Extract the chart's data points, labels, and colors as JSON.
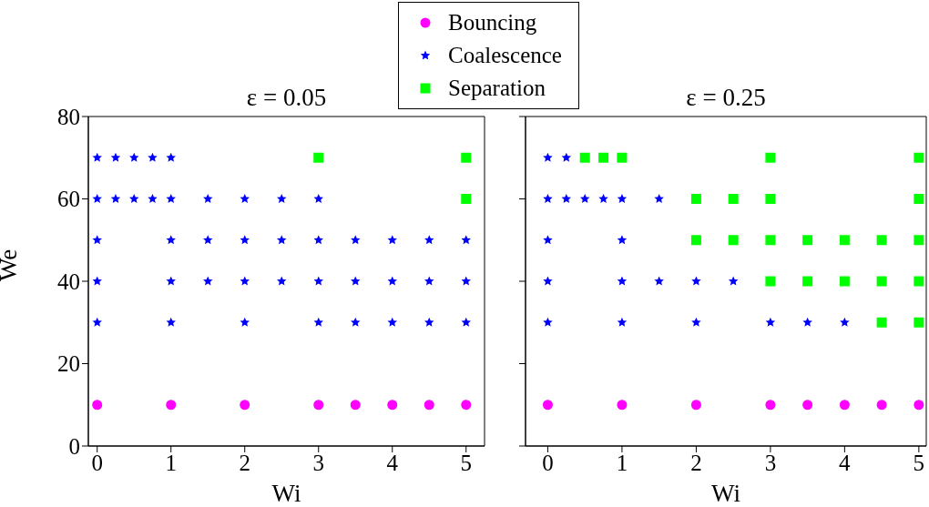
{
  "chart_data": [
    {
      "type": "scatter",
      "title": "ε = 0.05",
      "xlabel": "Wi",
      "ylabel": "We",
      "xlim": [
        -0.12,
        5.25
      ],
      "ylim": [
        0,
        80
      ],
      "xticks": [
        0,
        1,
        2,
        3,
        4,
        5
      ],
      "yticks": [
        0,
        20,
        40,
        60,
        80
      ],
      "grid": false,
      "legend": "top",
      "series": [
        {
          "name": "Bouncing",
          "color": "#ff00ff",
          "marker": "circle",
          "x": [
            0,
            1,
            2,
            3,
            3.5,
            4,
            4.5,
            5
          ],
          "values": [
            10,
            10,
            10,
            10,
            10,
            10,
            10,
            10
          ]
        },
        {
          "name": "Coalescence",
          "color": "#0000ff",
          "marker": "star",
          "x": [
            0,
            0.25,
            0.5,
            0.75,
            1,
            0,
            0.25,
            0.5,
            0.75,
            1,
            1.5,
            2,
            2.5,
            3,
            0,
            1,
            1.5,
            2,
            2.5,
            3,
            3.5,
            4,
            4.5,
            5,
            0,
            1,
            1.5,
            2,
            2.5,
            3,
            3.5,
            4,
            4.5,
            5,
            0,
            1,
            2,
            3,
            3.5,
            4,
            4.5,
            5
          ],
          "values": [
            70,
            70,
            70,
            70,
            70,
            60,
            60,
            60,
            60,
            60,
            60,
            60,
            60,
            60,
            50,
            50,
            50,
            50,
            50,
            50,
            50,
            50,
            50,
            50,
            40,
            40,
            40,
            40,
            40,
            40,
            40,
            40,
            40,
            40,
            30,
            30,
            30,
            30,
            30,
            30,
            30,
            30
          ]
        },
        {
          "name": "Separation",
          "color": "#00ff00",
          "marker": "square",
          "x": [
            3,
            5,
            5
          ],
          "values": [
            70,
            70,
            60
          ]
        }
      ]
    },
    {
      "type": "scatter",
      "title": "ε = 0.25",
      "xlabel": "Wi",
      "xlim": [
        -0.3,
        5.1
      ],
      "ylim": [
        0,
        80
      ],
      "xticks": [
        0,
        1,
        2,
        3,
        4,
        5
      ],
      "yticks": [
        0,
        20,
        40,
        60,
        80
      ],
      "grid": false,
      "legend": false,
      "tick_labels": "x",
      "series": [
        {
          "color": "#ff00ff",
          "marker": "circle",
          "x": [
            0,
            1,
            2,
            3,
            3.5,
            4,
            4.5,
            5
          ],
          "values": [
            10,
            10,
            10,
            10,
            10,
            10,
            10,
            10
          ]
        },
        {
          "color": "#0000ff",
          "marker": "star",
          "x": [
            0,
            0.25,
            0,
            0.25,
            0.5,
            0.75,
            1,
            1.5,
            0,
            1,
            0,
            1,
            1.5,
            2,
            2.5,
            0,
            1,
            2,
            3,
            3.5,
            4
          ],
          "values": [
            70,
            70,
            60,
            60,
            60,
            60,
            60,
            60,
            50,
            50,
            40,
            40,
            40,
            40,
            40,
            30,
            30,
            30,
            30,
            30,
            30
          ]
        },
        {
          "color": "#00ff00",
          "marker": "square",
          "x": [
            0.5,
            0.75,
            1,
            3,
            5,
            2,
            2.5,
            3,
            5,
            2,
            2.5,
            3,
            3.5,
            4,
            4.5,
            5,
            3,
            3.5,
            4,
            4.5,
            5,
            4.5,
            5
          ],
          "values": [
            70,
            70,
            70,
            70,
            70,
            60,
            60,
            60,
            60,
            50,
            50,
            50,
            50,
            50,
            50,
            50,
            40,
            40,
            40,
            40,
            40,
            30,
            30
          ]
        }
      ]
    }
  ]
}
